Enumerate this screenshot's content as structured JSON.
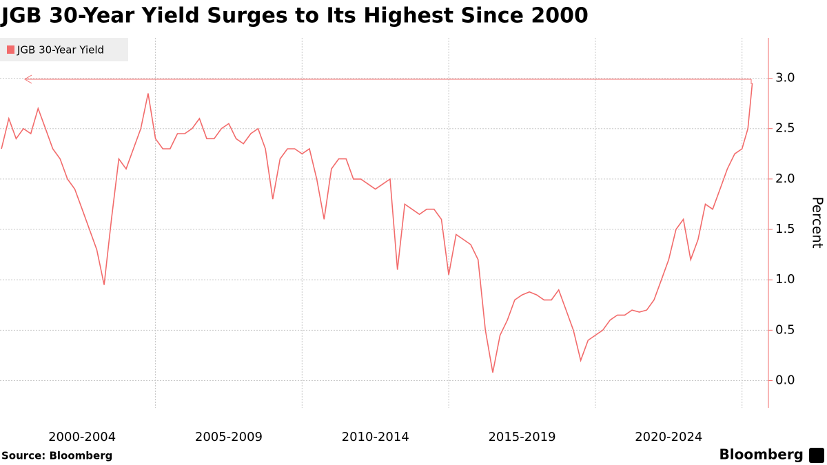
{
  "chart_data": {
    "type": "line",
    "title": "JGB 30-Year Yield Surges to Its Highest Since 2000",
    "y_label": "Percent",
    "source": "Source: Bloomberg",
    "brand": "Bloomberg",
    "xlim": [
      1999.7,
      2025.9
    ],
    "ylim": [
      -0.27,
      3.4
    ],
    "xticks": [
      {
        "value": 2002.5,
        "label": "2000-2004"
      },
      {
        "value": 2007.5,
        "label": "2005-2009"
      },
      {
        "value": 2012.5,
        "label": "2010-2014"
      },
      {
        "value": 2017.5,
        "label": "2015-2019"
      },
      {
        "value": 2022.5,
        "label": "2020-2024"
      }
    ],
    "xgrid": [
      2005,
      2010,
      2015,
      2020,
      2025
    ],
    "yticks": [
      {
        "value": 0,
        "label": "0.0"
      },
      0.5,
      {
        "value": 1,
        "label": "1.0"
      },
      1.5,
      {
        "value": 2,
        "label": "2.0"
      },
      2.5,
      {
        "value": 3,
        "label": "3.0"
      }
    ],
    "grid": true,
    "legend": "top-left",
    "series": [
      {
        "name": "JGB 30-Year Yield",
        "color": "#f26b6b",
        "x": [
          1999.75,
          2000.0,
          2000.25,
          2000.5,
          2000.75,
          2001.0,
          2001.25,
          2001.5,
          2001.75,
          2002.0,
          2002.25,
          2002.5,
          2002.75,
          2003.0,
          2003.25,
          2003.5,
          2003.75,
          2004.0,
          2004.25,
          2004.5,
          2004.75,
          2005.0,
          2005.25,
          2005.5,
          2005.75,
          2006.0,
          2006.25,
          2006.5,
          2006.75,
          2007.0,
          2007.25,
          2007.5,
          2007.75,
          2008.0,
          2008.25,
          2008.5,
          2008.75,
          2009.0,
          2009.25,
          2009.5,
          2009.75,
          2010.0,
          2010.25,
          2010.5,
          2010.75,
          2011.0,
          2011.25,
          2011.5,
          2011.75,
          2012.0,
          2012.25,
          2012.5,
          2012.75,
          2013.0,
          2013.25,
          2013.5,
          2013.75,
          2014.0,
          2014.25,
          2014.5,
          2014.75,
          2015.0,
          2015.25,
          2015.5,
          2015.75,
          2016.0,
          2016.25,
          2016.5,
          2016.75,
          2017.0,
          2017.25,
          2017.5,
          2017.75,
          2018.0,
          2018.25,
          2018.5,
          2018.75,
          2019.0,
          2019.25,
          2019.5,
          2019.75,
          2020.0,
          2020.25,
          2020.5,
          2020.75,
          2021.0,
          2021.25,
          2021.5,
          2021.75,
          2022.0,
          2022.25,
          2022.5,
          2022.75,
          2023.0,
          2023.25,
          2023.5,
          2023.75,
          2024.0,
          2024.25,
          2024.5,
          2024.75,
          2025.0,
          2025.2,
          2025.35
        ],
        "values": [
          2.3,
          2.6,
          2.4,
          2.5,
          2.45,
          2.7,
          2.5,
          2.3,
          2.2,
          2.0,
          1.9,
          1.7,
          1.5,
          1.3,
          0.95,
          1.6,
          2.2,
          2.1,
          2.3,
          2.5,
          2.85,
          2.4,
          2.3,
          2.3,
          2.45,
          2.45,
          2.5,
          2.6,
          2.4,
          2.4,
          2.5,
          2.55,
          2.4,
          2.35,
          2.45,
          2.5,
          2.3,
          1.8,
          2.2,
          2.3,
          2.3,
          2.25,
          2.3,
          2.0,
          1.6,
          2.1,
          2.2,
          2.2,
          2.0,
          2.0,
          1.95,
          1.9,
          1.95,
          2.0,
          1.1,
          1.75,
          1.7,
          1.65,
          1.7,
          1.7,
          1.6,
          1.05,
          1.45,
          1.4,
          1.35,
          1.2,
          0.5,
          0.08,
          0.45,
          0.6,
          0.8,
          0.85,
          0.88,
          0.85,
          0.8,
          0.8,
          0.9,
          0.7,
          0.5,
          0.2,
          0.4,
          0.45,
          0.5,
          0.6,
          0.65,
          0.65,
          0.7,
          0.68,
          0.7,
          0.8,
          1.0,
          1.2,
          1.5,
          1.6,
          1.2,
          1.4,
          1.75,
          1.7,
          1.9,
          2.1,
          2.25,
          2.3,
          2.5,
          2.95
        ]
      }
    ]
  }
}
